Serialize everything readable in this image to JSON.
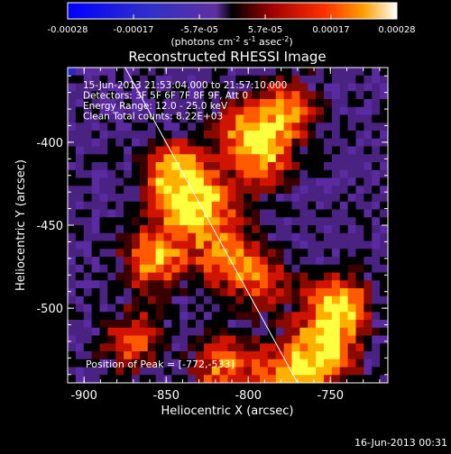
{
  "chart_data": {
    "type": "heatmap",
    "title": "Reconstructed RHESSI Image",
    "xlabel": "Heliocentric X (arcsec)",
    "ylabel": "Heliocentric Y (arcsec)",
    "xlim": [
      -910,
      -715
    ],
    "ylim": [
      -545,
      -355
    ],
    "x_ticks": [
      -900,
      -850,
      -800,
      -750
    ],
    "y_ticks": [
      -400,
      -450,
      -500
    ],
    "colorbar": {
      "range": [
        -0.00028,
        0.00028
      ],
      "ticks": [
        "-0.00028",
        "-0.00017",
        "-5.7e-05",
        "5.7e-05",
        "0.00017",
        "0.00028"
      ],
      "unit_base": "(photons cm",
      "unit_sup1": "-2",
      "unit_mid": " s",
      "unit_sup2": "-1",
      "unit_mid2": " asec",
      "unit_sup3": "-2",
      "unit_end": ")"
    },
    "annotations": [
      "15-Jun-2013 21:53:04.000 to 21:57:10.000",
      "Detectors: 3F 5F 6F 7F 8F 9F, Att 0",
      "Energy Range: 12.0 - 25.0 keV",
      "Clean     Total counts: 8.22E+03"
    ],
    "peak_label": "Position of Peak = [-772,-533]",
    "limb_line": {
      "x": [
        -875,
        -770
      ],
      "y": [
        -355,
        -545
      ]
    },
    "hot_regions": [
      {
        "x": -845,
        "y": -420,
        "intensity": 1.0
      },
      {
        "x": -830,
        "y": -440,
        "intensity": 0.95
      },
      {
        "x": -858,
        "y": -470,
        "intensity": 0.85
      },
      {
        "x": -870,
        "y": -520,
        "intensity": 0.6
      },
      {
        "x": -812,
        "y": -470,
        "intensity": 0.7
      },
      {
        "x": -790,
        "y": -485,
        "intensity": 0.5
      },
      {
        "x": -745,
        "y": -500,
        "intensity": 1.0
      },
      {
        "x": -755,
        "y": -530,
        "intensity": 0.95
      },
      {
        "x": -800,
        "y": -395,
        "intensity": 0.75
      },
      {
        "x": -775,
        "y": -380,
        "intensity": 0.7
      },
      {
        "x": -790,
        "y": -415,
        "intensity": 0.55
      },
      {
        "x": -815,
        "y": -535,
        "intensity": 0.7
      },
      {
        "x": -780,
        "y": -540,
        "intensity": 0.6
      }
    ]
  },
  "footer": {
    "timestamp": "16-Jun-2013 00:31"
  }
}
